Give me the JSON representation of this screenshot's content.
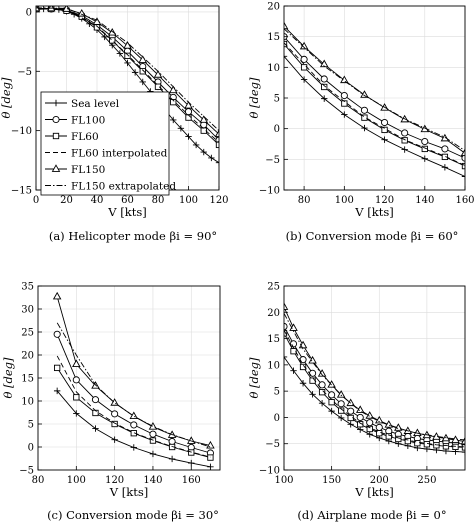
{
  "chart_data": [
    {
      "type": "line",
      "caption": "(a) Helicopter mode βi = 90°",
      "xlabel": "V [kts]",
      "ylabel": "θ [deg]",
      "xlim": [
        0,
        120
      ],
      "ylim": [
        -15,
        0.5
      ],
      "xticks": [
        0,
        20,
        40,
        60,
        80,
        100,
        120
      ],
      "yticks": [
        -15,
        -10,
        -5,
        0
      ],
      "grid": true,
      "legend": {
        "location": "lower-left",
        "entries": [
          "Sea level",
          "FL100",
          "FL60",
          "FL60 interpolated",
          "FL150",
          "FL150 extrapolated"
        ]
      },
      "series": [
        {
          "name": "Sea level",
          "marker": "plus",
          "line": "solid",
          "x": [
            0,
            5,
            10,
            15,
            20,
            25,
            30,
            35,
            40,
            45,
            50,
            55,
            60,
            65,
            70,
            75,
            80,
            85,
            90,
            95,
            100,
            105,
            110,
            115,
            120
          ],
          "y": [
            0.2,
            0.25,
            0.25,
            0.2,
            0.05,
            -0.2,
            -0.55,
            -1.0,
            -1.5,
            -2.1,
            -2.8,
            -3.5,
            -4.3,
            -5.1,
            -5.9,
            -6.7,
            -7.5,
            -8.3,
            -9.1,
            -9.8,
            -10.5,
            -11.2,
            -11.8,
            -12.3,
            -12.7
          ]
        },
        {
          "name": "FL100",
          "marker": "circle",
          "line": "solid",
          "x": [
            0,
            10,
            20,
            30,
            40,
            50,
            60,
            70,
            80,
            90,
            100,
            110,
            120
          ],
          "y": [
            0.25,
            0.25,
            0.15,
            -0.3,
            -1.1,
            -2.1,
            -3.3,
            -4.6,
            -5.9,
            -7.2,
            -8.4,
            -9.5,
            -10.8
          ]
        },
        {
          "name": "FL60",
          "marker": "square",
          "line": "solid",
          "x": [
            0,
            10,
            20,
            30,
            40,
            50,
            60,
            70,
            80,
            90,
            100,
            110,
            120
          ],
          "y": [
            0.25,
            0.25,
            0.1,
            -0.4,
            -1.3,
            -2.4,
            -3.7,
            -5.0,
            -6.3,
            -7.6,
            -8.9,
            -10.0,
            -11.2
          ]
        },
        {
          "name": "FL60 interpolated",
          "marker": "none",
          "line": "dashed",
          "x": [
            0,
            20,
            40,
            60,
            80,
            100,
            120
          ],
          "y": [
            0.3,
            0.2,
            -1.2,
            -3.6,
            -6.2,
            -8.7,
            -11.0
          ]
        },
        {
          "name": "FL150",
          "marker": "triangle",
          "line": "solid",
          "x": [
            0,
            10,
            20,
            30,
            40,
            50,
            60,
            70,
            80,
            90,
            100,
            110,
            120
          ],
          "y": [
            0.3,
            0.3,
            0.25,
            -0.15,
            -0.85,
            -1.75,
            -2.85,
            -4.05,
            -5.3,
            -6.6,
            -7.9,
            -9.1,
            -10.3
          ]
        },
        {
          "name": "FL150 extrapolated",
          "marker": "none",
          "line": "dashdot",
          "x": [
            0,
            20,
            40,
            60,
            80,
            100,
            120
          ],
          "y": [
            0.35,
            0.3,
            -0.7,
            -2.6,
            -5.0,
            -7.6,
            -10.0
          ]
        }
      ]
    },
    {
      "type": "line",
      "caption": "(b) Conversion mode βi = 60°",
      "xlabel": "V [kts]",
      "ylabel": "θ [deg]",
      "xlim": [
        70,
        160
      ],
      "ylim": [
        -10,
        20
      ],
      "xticks": [
        80,
        100,
        120,
        140,
        160
      ],
      "yticks": [
        -10,
        -5,
        0,
        5,
        10,
        15,
        20
      ],
      "grid": true,
      "series": [
        {
          "name": "Sea level",
          "marker": "plus",
          "line": "solid",
          "x": [
            70,
            80,
            90,
            100,
            110,
            120,
            130,
            140,
            150,
            160
          ],
          "y": [
            11.8,
            8.0,
            4.9,
            2.3,
            0.1,
            -1.8,
            -3.4,
            -4.9,
            -6.3,
            -7.8
          ]
        },
        {
          "name": "FL100",
          "marker": "circle",
          "line": "solid",
          "x": [
            70,
            80,
            90,
            100,
            110,
            120,
            130,
            140,
            150,
            160
          ],
          "y": [
            15.0,
            11.3,
            8.1,
            5.4,
            3.0,
            1.0,
            -0.7,
            -2.1,
            -3.3,
            -4.8
          ]
        },
        {
          "name": "FL60",
          "marker": "square",
          "line": "solid",
          "x": [
            70,
            80,
            90,
            100,
            110,
            120,
            130,
            140,
            150,
            160
          ],
          "y": [
            13.8,
            10.0,
            6.8,
            4.1,
            1.8,
            -0.2,
            -1.9,
            -3.3,
            -4.6,
            -6.1
          ]
        },
        {
          "name": "FL60 interpolated",
          "marker": "none",
          "line": "dashed",
          "x": [
            70,
            90,
            110,
            130,
            150,
            160
          ],
          "y": [
            14.0,
            7.0,
            1.9,
            -1.8,
            -4.5,
            -6.0
          ]
        },
        {
          "name": "FL150",
          "marker": "triangle",
          "line": "solid",
          "x": [
            70,
            80,
            90,
            100,
            110,
            120,
            130,
            140,
            150,
            160
          ],
          "y": [
            16.7,
            13.4,
            10.5,
            7.9,
            5.5,
            3.4,
            1.5,
            -0.1,
            -1.6,
            -4.0
          ]
        },
        {
          "name": "FL150 extrapolated",
          "marker": "none",
          "line": "dashdot",
          "x": [
            70,
            90,
            110,
            130,
            150,
            160
          ],
          "y": [
            16.3,
            10.2,
            5.4,
            1.6,
            -1.4,
            -3.6
          ]
        }
      ]
    },
    {
      "type": "line",
      "caption": "(c) Conversion mode βi = 30°",
      "xlabel": "V [kts]",
      "ylabel": "θ [deg]",
      "xlim": [
        80,
        175
      ],
      "ylim": [
        -5,
        35
      ],
      "xticks": [
        80,
        100,
        120,
        140,
        160
      ],
      "yticks": [
        -5,
        0,
        5,
        10,
        15,
        20,
        25,
        30,
        35
      ],
      "grid": true,
      "series": [
        {
          "name": "Sea level",
          "marker": "plus",
          "line": "solid",
          "x": [
            90,
            100,
            110,
            120,
            130,
            140,
            150,
            160,
            170
          ],
          "y": [
            12.2,
            7.3,
            4.0,
            1.6,
            -0.1,
            -1.5,
            -2.6,
            -3.5,
            -4.3
          ]
        },
        {
          "name": "FL100",
          "marker": "circle",
          "line": "solid",
          "x": [
            90,
            100,
            110,
            120,
            130,
            140,
            150,
            160,
            170
          ],
          "y": [
            24.5,
            14.6,
            10.3,
            7.2,
            4.8,
            2.8,
            1.2,
            -0.1,
            -1.3
          ]
        },
        {
          "name": "FL60",
          "marker": "square",
          "line": "solid",
          "x": [
            90,
            100,
            110,
            120,
            130,
            140,
            150,
            160,
            170
          ],
          "y": [
            17.2,
            10.8,
            7.4,
            5.0,
            3.0,
            1.4,
            0.0,
            -1.2,
            -2.3
          ]
        },
        {
          "name": "FL60 interpolated",
          "marker": "none",
          "line": "dashed",
          "x": [
            90,
            100,
            110,
            120,
            130,
            140,
            150,
            160,
            170
          ],
          "y": [
            19.8,
            12.0,
            7.9,
            5.2,
            3.1,
            1.5,
            0.1,
            -1.1,
            -2.2
          ]
        },
        {
          "name": "FL150",
          "marker": "triangle",
          "line": "solid",
          "x": [
            90,
            100,
            110,
            120,
            130,
            140,
            150,
            160,
            170
          ],
          "y": [
            32.7,
            18.0,
            13.3,
            9.6,
            6.7,
            4.4,
            2.6,
            1.3,
            0.3
          ]
        },
        {
          "name": "FL150 extrapolated",
          "marker": "none",
          "line": "dashdot",
          "x": [
            90,
            100,
            110,
            120,
            130,
            140,
            150,
            160,
            170
          ],
          "y": [
            27.0,
            20.0,
            13.5,
            9.6,
            6.7,
            4.5,
            2.7,
            1.3,
            0.0
          ]
        }
      ]
    },
    {
      "type": "line",
      "caption": "(d) Airplane mode βi = 0°",
      "xlabel": "V [kts]",
      "ylabel": "θ [deg]",
      "xlim": [
        100,
        290
      ],
      "ylim": [
        -10,
        25
      ],
      "xticks": [
        100,
        150,
        200,
        250
      ],
      "yticks": [
        -10,
        -5,
        0,
        5,
        10,
        15,
        20,
        25
      ],
      "grid": true,
      "series": [
        {
          "name": "Sea level",
          "marker": "plus",
          "line": "solid",
          "x": [
            100,
            110,
            120,
            130,
            140,
            150,
            160,
            170,
            180,
            190,
            200,
            210,
            220,
            230,
            240,
            250,
            260,
            270,
            280,
            290
          ],
          "y": [
            11.5,
            8.9,
            6.5,
            4.4,
            2.7,
            1.2,
            -0.1,
            -1.3,
            -2.3,
            -3.2,
            -3.9,
            -4.5,
            -5.0,
            -5.4,
            -5.8,
            -6.0,
            -6.2,
            -6.4,
            -6.5,
            -6.6
          ]
        },
        {
          "name": "FL100",
          "marker": "circle",
          "line": "solid",
          "x": [
            100,
            110,
            120,
            130,
            140,
            150,
            160,
            170,
            180,
            190,
            200,
            210,
            220,
            230,
            240,
            250,
            260,
            270,
            280,
            290
          ],
          "y": [
            17.3,
            14.0,
            11.0,
            8.4,
            6.2,
            4.3,
            2.6,
            1.2,
            0.0,
            -1.0,
            -1.9,
            -2.6,
            -3.2,
            -3.6,
            -4.0,
            -4.3,
            -4.5,
            -4.7,
            -4.9,
            -5.1
          ]
        },
        {
          "name": "FL60",
          "marker": "square",
          "line": "solid",
          "x": [
            100,
            110,
            120,
            130,
            140,
            150,
            160,
            170,
            180,
            190,
            200,
            210,
            220,
            230,
            240,
            250,
            260,
            270,
            280,
            290
          ],
          "y": [
            16.0,
            12.6,
            9.6,
            7.0,
            4.8,
            2.9,
            1.3,
            -0.1,
            -1.3,
            -2.2,
            -3.0,
            -3.6,
            -4.1,
            -4.5,
            -4.9,
            -5.1,
            -5.3,
            -5.5,
            -5.6,
            -5.7
          ]
        },
        {
          "name": "FL60 interpolated",
          "marker": "none",
          "line": "dashed",
          "x": [
            100,
            120,
            140,
            160,
            180,
            200,
            220,
            240,
            260,
            280,
            290
          ],
          "y": [
            16.6,
            10.0,
            5.2,
            1.6,
            -1.1,
            -2.8,
            -3.9,
            -4.7,
            -5.2,
            -5.5,
            -5.6
          ]
        },
        {
          "name": "FL150",
          "marker": "triangle",
          "line": "solid",
          "x": [
            100,
            110,
            120,
            130,
            140,
            150,
            160,
            170,
            180,
            190,
            200,
            210,
            220,
            230,
            240,
            250,
            260,
            270,
            280,
            290
          ],
          "y": [
            21.0,
            17.0,
            13.7,
            10.8,
            8.3,
            6.2,
            4.3,
            2.7,
            1.4,
            0.3,
            -0.6,
            -1.4,
            -2.0,
            -2.6,
            -3.0,
            -3.4,
            -3.7,
            -4.0,
            -4.3,
            -4.6
          ]
        },
        {
          "name": "FL150 extrapolated",
          "marker": "none",
          "line": "dashdot",
          "x": [
            100,
            120,
            140,
            160,
            180,
            200,
            220,
            240,
            260,
            280,
            290
          ],
          "y": [
            19.8,
            13.0,
            8.1,
            4.2,
            1.2,
            -0.8,
            -2.1,
            -3.0,
            -3.6,
            -4.1,
            -4.3
          ]
        }
      ]
    }
  ]
}
